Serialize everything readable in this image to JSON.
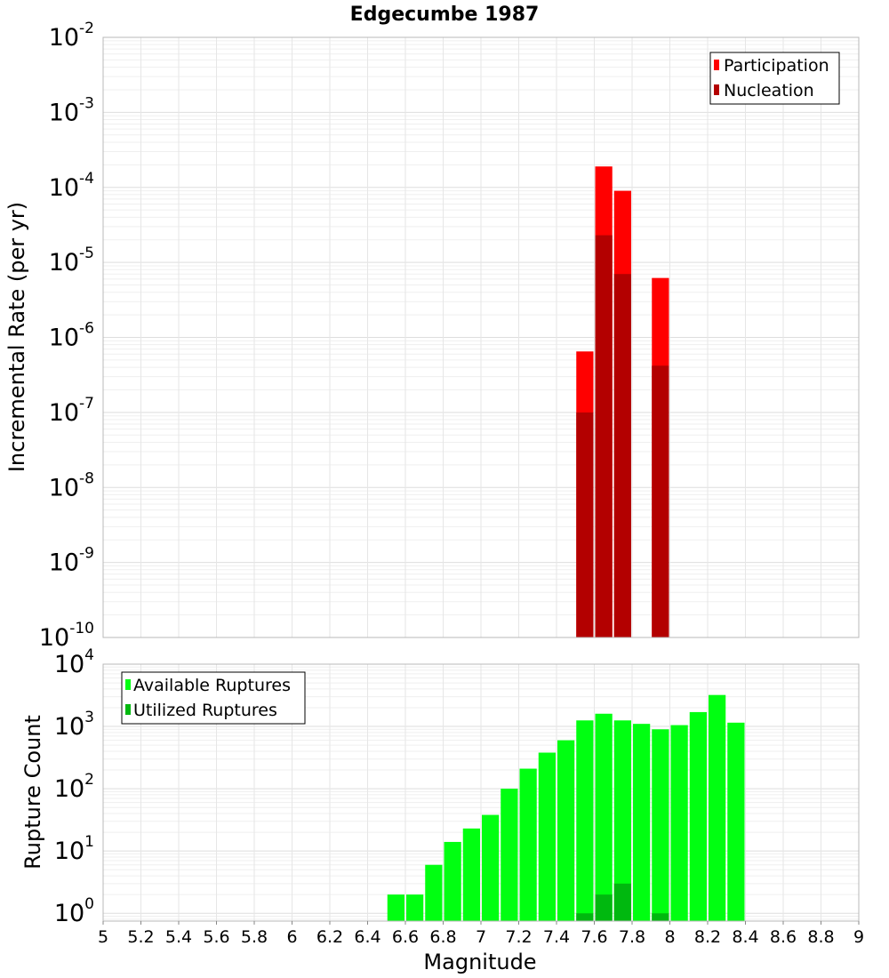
{
  "chart_data": [
    {
      "type": "bar",
      "title": "Edgecumbe 1987",
      "xlabel": "",
      "ylabel": "Incremental Rate (per yr)",
      "yscale": "log",
      "xlim": [
        5,
        9
      ],
      "ylim": [
        1e-10,
        0.01
      ],
      "yticks": [
        {
          "base": "10",
          "exp": "-10"
        },
        {
          "base": "10",
          "exp": "-9"
        },
        {
          "base": "10",
          "exp": "-8"
        },
        {
          "base": "10",
          "exp": "-7"
        },
        {
          "base": "10",
          "exp": "-6"
        },
        {
          "base": "10",
          "exp": "-5"
        },
        {
          "base": "10",
          "exp": "-4"
        },
        {
          "base": "10",
          "exp": "-3"
        },
        {
          "base": "10",
          "exp": "-2"
        }
      ],
      "grid": true,
      "legend_position": "top-right",
      "x": [
        7.55,
        7.65,
        7.75,
        7.95
      ],
      "series": [
        {
          "name": "Participation",
          "color": "#ff0000",
          "values": [
            6.5e-07,
            0.00019,
            9e-05,
            6.2e-06
          ]
        },
        {
          "name": "Nucleation",
          "color": "#b30000",
          "values": [
            1e-07,
            2.3e-05,
            7e-06,
            4.2e-07
          ]
        }
      ]
    },
    {
      "type": "bar",
      "xlabel": "Magnitude",
      "ylabel": "Rupture Count",
      "yscale": "log",
      "xlim": [
        5,
        9
      ],
      "ylim": [
        0.75,
        10000
      ],
      "xticks": [
        "5",
        "5.2",
        "5.4",
        "5.6",
        "5.8",
        "6",
        "6.2",
        "6.4",
        "6.6",
        "6.8",
        "7",
        "7.2",
        "7.4",
        "7.6",
        "7.8",
        "8",
        "8.2",
        "8.4",
        "8.6",
        "8.8",
        "9"
      ],
      "yticks": [
        {
          "base": "10",
          "exp": "0"
        },
        {
          "base": "10",
          "exp": "1"
        },
        {
          "base": "10",
          "exp": "2"
        },
        {
          "base": "10",
          "exp": "3"
        },
        {
          "base": "10",
          "exp": "4"
        }
      ],
      "grid": true,
      "legend_position": "top-left",
      "x": [
        6.55,
        6.65,
        6.75,
        6.85,
        6.95,
        7.05,
        7.15,
        7.25,
        7.35,
        7.45,
        7.55,
        7.65,
        7.75,
        7.85,
        7.95,
        8.05,
        8.15,
        8.25,
        8.35
      ],
      "series": [
        {
          "name": "Available Ruptures",
          "color": "#00ff11",
          "values": [
            2,
            2,
            6,
            14,
            23,
            38,
            100,
            210,
            380,
            600,
            1250,
            1600,
            1250,
            1100,
            900,
            1050,
            1700,
            3200,
            1150
          ]
        },
        {
          "name": "Utilized Ruptures",
          "color": "#00b80f",
          "values": [
            0,
            0,
            0,
            0,
            0,
            0,
            0,
            0,
            0,
            0,
            1,
            2,
            3,
            0,
            1,
            0,
            0,
            0,
            0
          ]
        }
      ]
    }
  ]
}
